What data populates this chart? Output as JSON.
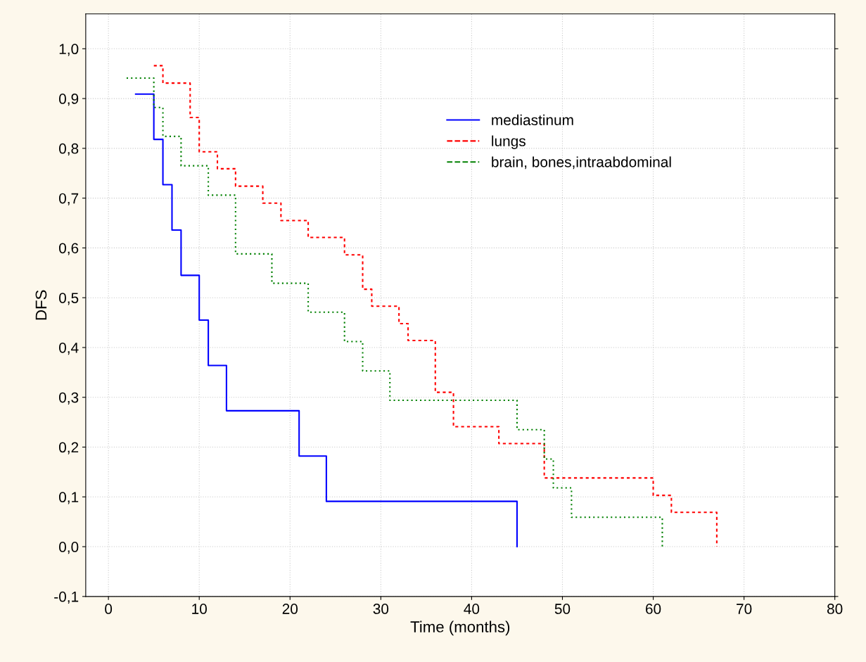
{
  "chart_data": {
    "type": "step",
    "xlabel": "Time (months)",
    "ylabel": "DFS",
    "xlim": [
      -2.5,
      80
    ],
    "xticks": [
      0,
      10,
      20,
      30,
      40,
      50,
      60,
      70,
      80
    ],
    "ylim": [
      -0.1,
      1.07
    ],
    "yticks": [
      {
        "value": -0.1,
        "label": "-0,1"
      },
      {
        "value": 0.0,
        "label": "0,0"
      },
      {
        "value": 0.1,
        "label": "0,1"
      },
      {
        "value": 0.2,
        "label": "0,2"
      },
      {
        "value": 0.3,
        "label": "0,3"
      },
      {
        "value": 0.4,
        "label": "0,4"
      },
      {
        "value": 0.5,
        "label": "0,5"
      },
      {
        "value": 0.6,
        "label": "0,6"
      },
      {
        "value": 0.7,
        "label": "0,7"
      },
      {
        "value": 0.8,
        "label": "0,8"
      },
      {
        "value": 0.9,
        "label": "0,9"
      },
      {
        "value": 1.0,
        "label": "1,0"
      }
    ],
    "grid": true,
    "legend": "top right",
    "series": [
      {
        "name": "mediastinum",
        "color": "#0000ff",
        "line_style": "solid",
        "x": [
          3,
          5,
          6,
          7,
          8,
          10,
          11,
          13,
          21,
          24,
          45
        ],
        "values": [
          0.909,
          0.818,
          0.727,
          0.636,
          0.545,
          0.455,
          0.364,
          0.273,
          0.182,
          0.091,
          0.0
        ]
      },
      {
        "name": "lungs",
        "color": "#ff0000",
        "line_style": "dashed",
        "x": [
          5,
          6,
          9,
          10,
          12,
          14,
          17,
          19,
          22,
          26,
          28,
          29,
          32,
          33,
          36,
          38,
          43,
          48,
          60,
          62,
          67
        ],
        "values": [
          0.966,
          0.931,
          0.862,
          0.793,
          0.759,
          0.724,
          0.69,
          0.655,
          0.621,
          0.586,
          0.517,
          0.483,
          0.448,
          0.414,
          0.31,
          0.241,
          0.207,
          0.138,
          0.103,
          0.069,
          0.0
        ]
      },
      {
        "name": "brain, bones,intraabdominal",
        "color": "#008000",
        "line_style": "dotted",
        "x": [
          2,
          5,
          6,
          8,
          11,
          14,
          18,
          22,
          26,
          28,
          31,
          45,
          48,
          49,
          51,
          61
        ],
        "values": [
          0.941,
          0.882,
          0.824,
          0.765,
          0.706,
          0.588,
          0.529,
          0.471,
          0.412,
          0.353,
          0.294,
          0.235,
          0.176,
          0.118,
          0.059,
          0.0
        ]
      }
    ]
  }
}
